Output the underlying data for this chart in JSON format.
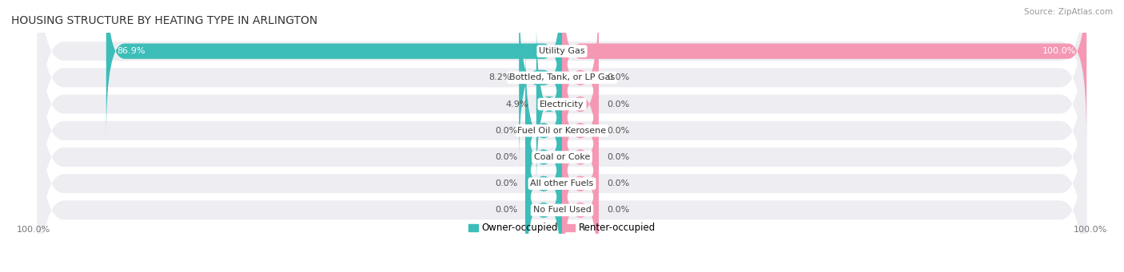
{
  "title": "HOUSING STRUCTURE BY HEATING TYPE IN ARLINGTON",
  "source": "Source: ZipAtlas.com",
  "categories": [
    "Utility Gas",
    "Bottled, Tank, or LP Gas",
    "Electricity",
    "Fuel Oil or Kerosene",
    "Coal or Coke",
    "All other Fuels",
    "No Fuel Used"
  ],
  "owner_values": [
    86.9,
    8.2,
    4.9,
    0.0,
    0.0,
    0.0,
    0.0
  ],
  "renter_values": [
    100.0,
    0.0,
    0.0,
    0.0,
    0.0,
    0.0,
    0.0
  ],
  "owner_color": "#3dbdb8",
  "renter_color": "#f598b4",
  "bg_row_color": "#ededf2",
  "row_gap_color": "#ffffff",
  "label_bg_color": "#ffffff",
  "min_bar_pct": 7.0,
  "max_val": 100.0,
  "legend_owner": "Owner-occupied",
  "legend_renter": "Renter-occupied",
  "left_axis_label": "100.0%",
  "right_axis_label": "100.0%",
  "title_fontsize": 10,
  "source_fontsize": 7.5,
  "bar_label_fontsize": 8,
  "category_fontsize": 8,
  "axis_label_fontsize": 8
}
